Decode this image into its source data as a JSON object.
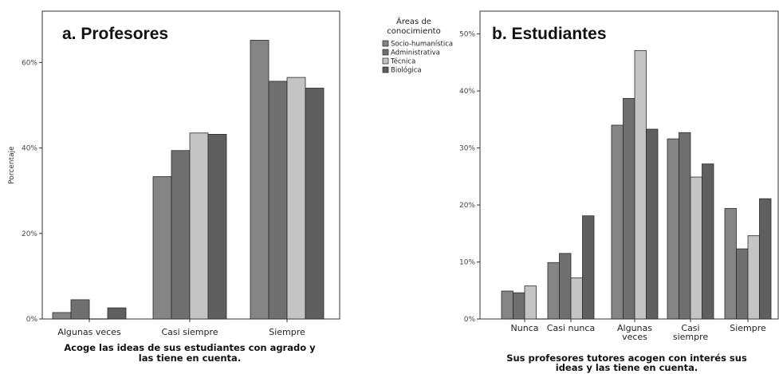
{
  "legend": {
    "title_line1": "Áreas de",
    "title_line2": "conocimiento",
    "entries": [
      "Socio-humanística",
      "Administrativa",
      "Técnica",
      "Biológica"
    ]
  },
  "colors": {
    "Socio-humanística": "#858585",
    "Administrativa": "#6f6f6f",
    "Técnica": "#c4c4c4",
    "Biológica": "#5f5f5f",
    "frame": "#333333"
  },
  "chart_data": [
    {
      "type": "bar",
      "title": "a. Profesores",
      "ylabel": "Porcentaje",
      "xlabel_line1": "Acoge las ideas de sus estudiantes con agrado y",
      "xlabel_line2": "las tiene en cuenta.",
      "categories": [
        [
          "Algunas veces"
        ],
        [
          "Casi siempre"
        ],
        [
          "Siempre"
        ]
      ],
      "ylim": [
        0,
        72
      ],
      "yticks": [
        0,
        20,
        40,
        60
      ],
      "ytick_labels": [
        "0%",
        "20%",
        "40%",
        "60%"
      ],
      "grid": false,
      "series": [
        {
          "name": "Socio-humanística",
          "values": [
            1.5,
            33.3,
            65.2
          ]
        },
        {
          "name": "Administrativa",
          "values": [
            4.5,
            39.4,
            55.6
          ]
        },
        {
          "name": "Técnica",
          "values": [
            0.0,
            43.5,
            56.5
          ]
        },
        {
          "name": "Biológica",
          "values": [
            2.6,
            43.2,
            54.0
          ]
        }
      ]
    },
    {
      "type": "bar",
      "title": "b. Estudiantes",
      "ylabel": "",
      "xlabel_line1": "Sus profesores tutores acogen con interés sus",
      "xlabel_line2": "ideas y las tiene en cuenta.",
      "categories": [
        [
          "Nunca"
        ],
        [
          "Casi nunca"
        ],
        [
          "Algunas",
          "veces"
        ],
        [
          "Casi",
          "siempre"
        ],
        [
          "Siempre"
        ]
      ],
      "ylim": [
        0,
        54
      ],
      "yticks": [
        0,
        10,
        20,
        30,
        40,
        50
      ],
      "ytick_labels": [
        "0%",
        "10%",
        "20%",
        "30%",
        "40%",
        "50%"
      ],
      "grid": false,
      "series": [
        {
          "name": "Socio-humanística",
          "values": [
            4.9,
            9.9,
            34.0,
            31.6,
            19.4
          ]
        },
        {
          "name": "Administrativa",
          "values": [
            4.6,
            11.5,
            38.7,
            32.7,
            12.3
          ]
        },
        {
          "name": "Técnica",
          "values": [
            5.8,
            7.2,
            47.1,
            24.9,
            14.6
          ]
        },
        {
          "name": "Biológica",
          "values": [
            0.0,
            18.1,
            33.3,
            27.2,
            21.1
          ]
        }
      ]
    }
  ]
}
